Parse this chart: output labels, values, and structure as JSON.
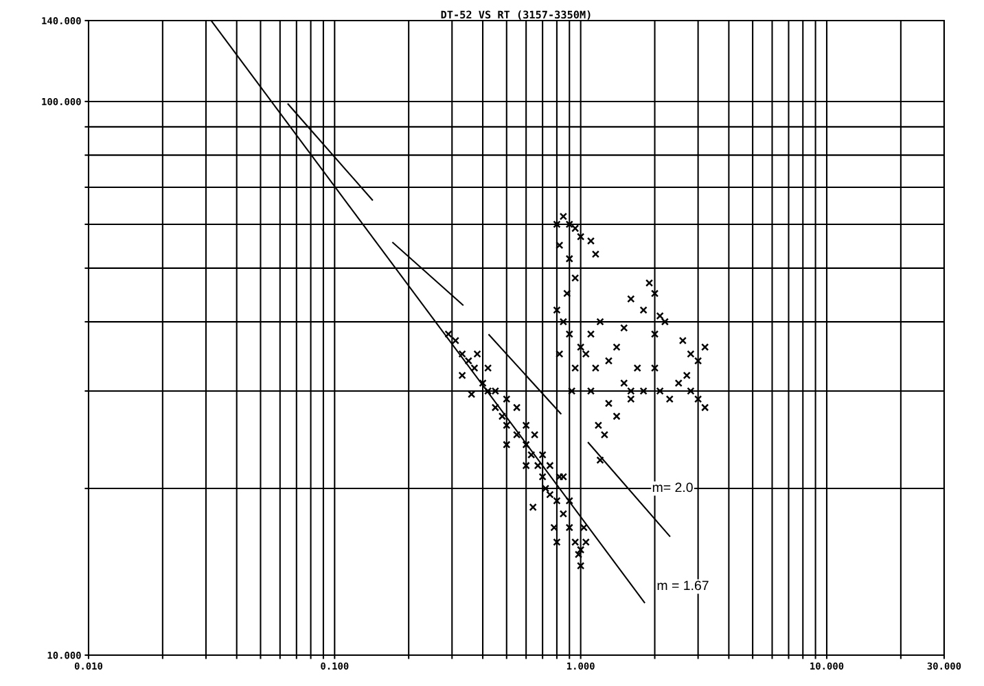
{
  "chart_data": {
    "type": "scatter",
    "title": "DT-52 VS RT (3157-3350M)",
    "log": "xy",
    "grid": true,
    "xlim": [
      0.01,
      30
    ],
    "ylim": [
      10,
      140
    ],
    "xticks": [
      {
        "value": 0.01,
        "label": "0.010"
      },
      {
        "value": 0.02,
        "label": null
      },
      {
        "value": 0.03,
        "label": null
      },
      {
        "value": 0.04,
        "label": null
      },
      {
        "value": 0.05,
        "label": null
      },
      {
        "value": 0.06,
        "label": null
      },
      {
        "value": 0.07,
        "label": null
      },
      {
        "value": 0.08,
        "label": null
      },
      {
        "value": 0.09,
        "label": null
      },
      {
        "value": 0.1,
        "label": "0.100"
      },
      {
        "value": 0.2,
        "label": null
      },
      {
        "value": 0.3,
        "label": null
      },
      {
        "value": 0.4,
        "label": null
      },
      {
        "value": 0.5,
        "label": null
      },
      {
        "value": 0.6,
        "label": null
      },
      {
        "value": 0.7,
        "label": null
      },
      {
        "value": 0.8,
        "label": null
      },
      {
        "value": 0.9,
        "label": null
      },
      {
        "value": 1,
        "label": "1.000"
      },
      {
        "value": 2,
        "label": null
      },
      {
        "value": 3,
        "label": null
      },
      {
        "value": 4,
        "label": null
      },
      {
        "value": 5,
        "label": null
      },
      {
        "value": 6,
        "label": null
      },
      {
        "value": 7,
        "label": null
      },
      {
        "value": 8,
        "label": null
      },
      {
        "value": 9,
        "label": null
      },
      {
        "value": 10,
        "label": "10.000"
      },
      {
        "value": 20,
        "label": null
      },
      {
        "value": 30,
        "label": "30.000"
      }
    ],
    "yticks": [
      {
        "value": 10,
        "label": "10.000"
      },
      {
        "value": 20,
        "label": null
      },
      {
        "value": 30,
        "label": null
      },
      {
        "value": 40,
        "label": null
      },
      {
        "value": 50,
        "label": null
      },
      {
        "value": 60,
        "label": null
      },
      {
        "value": 70,
        "label": null
      },
      {
        "value": 80,
        "label": null
      },
      {
        "value": 90,
        "label": null
      },
      {
        "value": 100,
        "label": "100.000"
      },
      {
        "value": 140,
        "label": "140.000"
      }
    ],
    "series": [
      {
        "marker": "cross",
        "color": "#000000",
        "x": [
          0.29,
          0.31,
          0.33,
          0.35,
          0.37,
          0.4,
          0.42,
          0.45,
          0.48,
          0.5,
          0.55,
          0.6,
          0.63,
          0.67,
          0.7,
          0.72,
          0.75,
          0.8,
          0.85,
          0.9,
          0.95,
          1.0,
          1.05,
          0.8,
          0.78,
          1.0,
          0.98,
          1.03,
          0.82,
          0.33,
          0.38,
          0.42,
          0.45,
          0.5,
          0.5,
          0.55,
          0.6,
          0.6,
          0.65,
          0.7,
          0.75,
          0.85,
          0.9,
          0.36,
          0.64,
          0.8,
          0.85,
          0.9,
          0.95,
          1.0,
          1.1,
          1.15,
          0.82,
          0.9,
          0.95,
          0.88,
          0.85,
          0.8,
          0.82,
          0.9,
          0.95,
          0.92,
          1.0,
          1.05,
          1.1,
          1.2,
          1.15,
          1.1,
          1.3,
          1.3,
          1.25,
          1.2,
          1.18,
          1.4,
          1.5,
          1.6,
          1.8,
          1.9,
          1.7,
          1.6,
          1.8,
          2.0,
          2.0,
          2.2,
          2.1,
          2.3,
          2.6,
          2.8,
          3.0,
          2.7,
          3.2,
          2.8,
          3.0,
          3.2,
          2.5,
          2.0,
          2.1,
          1.5,
          1.4,
          1.6
        ],
        "values": [
          38,
          37,
          35,
          34,
          33,
          31,
          30,
          28,
          27,
          26,
          25,
          24,
          23,
          22,
          21,
          20,
          19.5,
          19,
          18,
          17,
          16,
          15.5,
          16,
          16,
          17,
          14.5,
          15.2,
          17,
          21,
          32,
          35,
          33,
          30,
          29,
          24,
          28,
          26,
          22,
          25,
          23,
          22,
          21,
          19,
          29.6,
          18.5,
          60,
          62,
          60,
          59,
          57,
          56,
          53,
          55,
          52,
          48,
          45,
          40,
          42,
          35,
          38,
          33,
          30,
          36,
          35,
          38,
          40,
          33,
          30,
          34,
          28.5,
          25,
          22.5,
          26,
          36,
          39,
          44,
          42,
          47,
          33,
          30,
          30,
          33,
          38,
          40,
          30,
          29,
          37,
          35,
          34,
          32,
          36,
          30,
          29,
          28,
          31,
          45,
          41,
          31,
          27,
          29
        ]
      },
      {
        "type": "line",
        "color": "#000000",
        "x": [
          0.0315,
          1.816
        ],
        "values": [
          140,
          12.45
        ]
      },
      {
        "type": "line",
        "color": "#000000",
        "x": [
          0.0647,
          0.1423
        ],
        "values": [
          98.9,
          66.4
        ]
      },
      {
        "type": "line",
        "color": "#000000",
        "x": [
          0.1725,
          0.332
        ],
        "values": [
          55.6,
          42.9
        ]
      },
      {
        "type": "line",
        "color": "#000000",
        "x": [
          0.424,
          0.83
        ],
        "values": [
          37.9,
          27.3
        ]
      },
      {
        "type": "line",
        "color": "#000000",
        "x": [
          1.074,
          2.3
        ],
        "values": [
          24.2,
          16.4
        ]
      }
    ],
    "annotations": [
      {
        "text": "m= 2.0",
        "x": 1.56,
        "y": 20
      },
      {
        "text": "m = 1.67",
        "x": 1.63,
        "y": 13.3
      }
    ]
  }
}
